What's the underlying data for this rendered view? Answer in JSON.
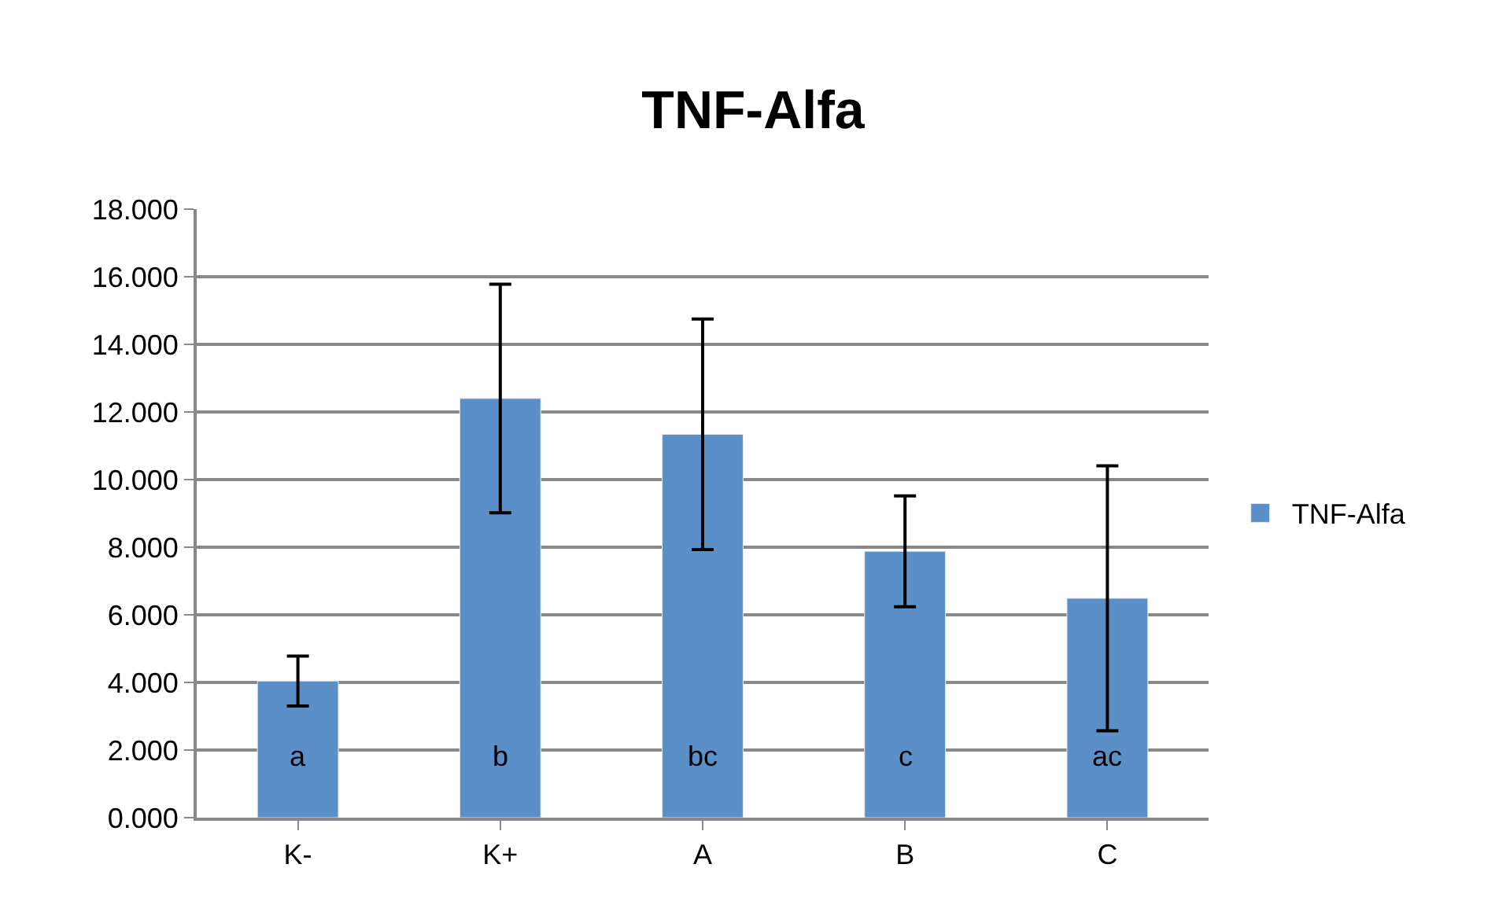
{
  "chart_data": {
    "type": "bar",
    "title": "TNF-Alfa",
    "categories": [
      "K-",
      "K+",
      "A",
      "B",
      "C"
    ],
    "series": [
      {
        "name": "TNF-Alfa",
        "color": "#5b8fc7",
        "values": [
          4.04,
          12.4,
          11.34,
          7.88,
          6.49
        ],
        "errors": [
          0.74,
          3.38,
          3.41,
          1.64,
          3.92
        ]
      }
    ],
    "ylim": [
      0,
      18
    ],
    "yticks": [
      {
        "value": 0,
        "label": "0.000"
      },
      {
        "value": 2,
        "label": "2.000"
      },
      {
        "value": 4,
        "label": "4.000"
      },
      {
        "value": 6,
        "label": "6.000"
      },
      {
        "value": 8,
        "label": "8.000"
      },
      {
        "value": 10,
        "label": "10.000"
      },
      {
        "value": 12,
        "label": "12.000"
      },
      {
        "value": 14,
        "label": "14.000"
      },
      {
        "value": 16,
        "label": "16.000"
      },
      {
        "value": 18,
        "label": "18.000"
      }
    ],
    "annotations": [
      "a",
      "b",
      "bc",
      "c",
      "ac"
    ],
    "grid": "y",
    "legend": "right"
  }
}
